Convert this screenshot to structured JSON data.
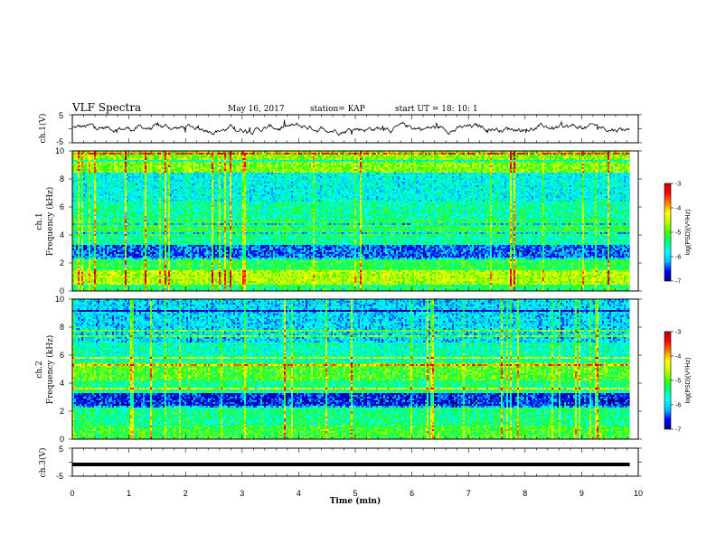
{
  "header": {
    "title": "VLF Spectra",
    "date": "May 16, 2017",
    "station": "station= KAP",
    "start": "start  UT  =   18: 10: 1"
  },
  "chart_data": [
    {
      "type": "line",
      "name": "ch1-waveform",
      "ylabel": "ch.1(V)",
      "ylim": [
        -5,
        5
      ],
      "yticks": [
        "5",
        "-5"
      ],
      "xlim": [
        0,
        10
      ],
      "x_end": 9.85,
      "description_level": 0.3,
      "noise_amplitude": 1.3
    },
    {
      "type": "heatmap",
      "name": "ch1-spectrogram",
      "ylabel": "ch.1\nFrequency (kHz)",
      "ylabel_top": "ch.1",
      "ylabel_bottom": "Frequency (kHz)",
      "ylim": [
        0,
        10
      ],
      "yticks": [
        "0",
        "2",
        "4",
        "6",
        "8",
        "10"
      ],
      "xlim": [
        0,
        10
      ],
      "x_end": 9.85,
      "bands": [
        {
          "from": 0.0,
          "to": 0.5,
          "level": -5.3
        },
        {
          "from": 0.5,
          "to": 1.5,
          "level": -4.6
        },
        {
          "from": 1.5,
          "to": 2.5,
          "level": -5.2
        },
        {
          "from": 2.5,
          "to": 3.4,
          "level": -6.4
        },
        {
          "from": 3.4,
          "to": 4.0,
          "level": -5.5
        },
        {
          "from": 4.0,
          "to": 5.2,
          "level": -5.2
        },
        {
          "from": 5.2,
          "to": 6.5,
          "level": -5.5
        },
        {
          "from": 6.5,
          "to": 8.5,
          "level": -5.8
        },
        {
          "from": 8.5,
          "to": 10.0,
          "level": -4.8
        }
      ]
    },
    {
      "type": "heatmap",
      "name": "ch2-spectrogram",
      "ylabel_top": "ch.2",
      "ylabel_bottom": "Frequency (kHz)",
      "ylim": [
        0,
        10
      ],
      "yticks": [
        "0",
        "2",
        "4",
        "6",
        "8",
        "10"
      ],
      "xlim": [
        0,
        10
      ],
      "x_end": 9.85,
      "bands": [
        {
          "from": 0.0,
          "to": 1.0,
          "level": -5.1
        },
        {
          "from": 1.0,
          "to": 2.4,
          "level": -5.4
        },
        {
          "from": 2.4,
          "to": 3.3,
          "level": -6.6
        },
        {
          "from": 3.3,
          "to": 4.2,
          "level": -5.4
        },
        {
          "from": 4.2,
          "to": 5.5,
          "level": -5.0
        },
        {
          "from": 5.5,
          "to": 7.0,
          "level": -5.6
        },
        {
          "from": 7.0,
          "to": 10.0,
          "level": -6.0
        }
      ]
    },
    {
      "type": "line",
      "name": "ch3-waveform",
      "ylabel": "ch.3(V)",
      "ylim": [
        -5,
        5
      ],
      "yticks": [
        "5",
        "-5"
      ],
      "xlim": [
        0,
        10
      ],
      "x_end": 9.85,
      "level": -0.8,
      "noise_amplitude": 0.05
    }
  ],
  "xaxis": {
    "label": "Time (min)",
    "ticks": [
      "0",
      "1",
      "2",
      "3",
      "4",
      "5",
      "6",
      "7",
      "8",
      "9",
      "10"
    ]
  },
  "colorbar": {
    "label": "log(PSD)(V²/Hz)",
    "ticks": [
      "-3",
      "-4",
      "-5",
      "-6",
      "-7"
    ],
    "range": [
      -7,
      -3
    ],
    "colors": [
      "#000080",
      "#0000ff",
      "#00bfff",
      "#00ffff",
      "#00ff80",
      "#40ff00",
      "#c0ff00",
      "#ffff00",
      "#ff8000",
      "#ff0000",
      "#c00000"
    ]
  }
}
